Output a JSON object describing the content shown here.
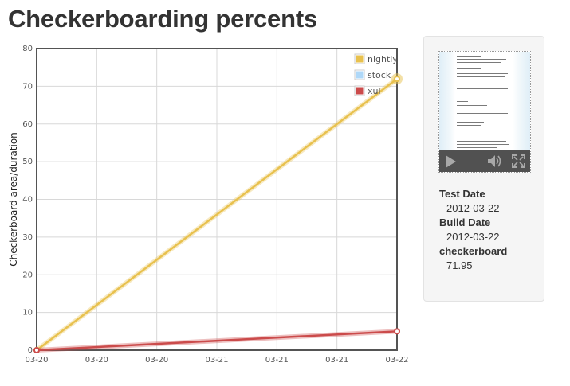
{
  "page": {
    "title": "Checkerboarding percents"
  },
  "info": {
    "test_date_label": "Test Date",
    "test_date": "2012-03-22",
    "build_date_label": "Build Date",
    "build_date": "2012-03-22",
    "metric_label": "checkerboard",
    "metric_value": "71.95"
  },
  "icons": {
    "play": "play-icon",
    "volume": "volume-icon",
    "fullscreen": "fullscreen-icon"
  },
  "chart_data": {
    "type": "line",
    "title": "",
    "xlabel": "",
    "ylabel": "Checkerboard area/duration",
    "ylim": [
      0,
      80
    ],
    "yticks": [
      0,
      10,
      20,
      30,
      40,
      50,
      60,
      70,
      80
    ],
    "xlim": [
      0,
      6
    ],
    "xtick_labels": [
      "03-20",
      "03-20",
      "03-20",
      "03-21",
      "03-21",
      "03-21",
      "03-22"
    ],
    "grid": true,
    "legend_position": "top-right",
    "series": [
      {
        "name": "nightly",
        "color": "#e8c14e",
        "x": [
          0,
          6
        ],
        "y": [
          0,
          71.95
        ],
        "highlight_last": true
      },
      {
        "name": "stock",
        "color": "#afd8f8",
        "x": [],
        "y": []
      },
      {
        "name": "xul",
        "color": "#cb4b4b",
        "x": [
          0,
          6
        ],
        "y": [
          0,
          5
        ]
      }
    ]
  }
}
